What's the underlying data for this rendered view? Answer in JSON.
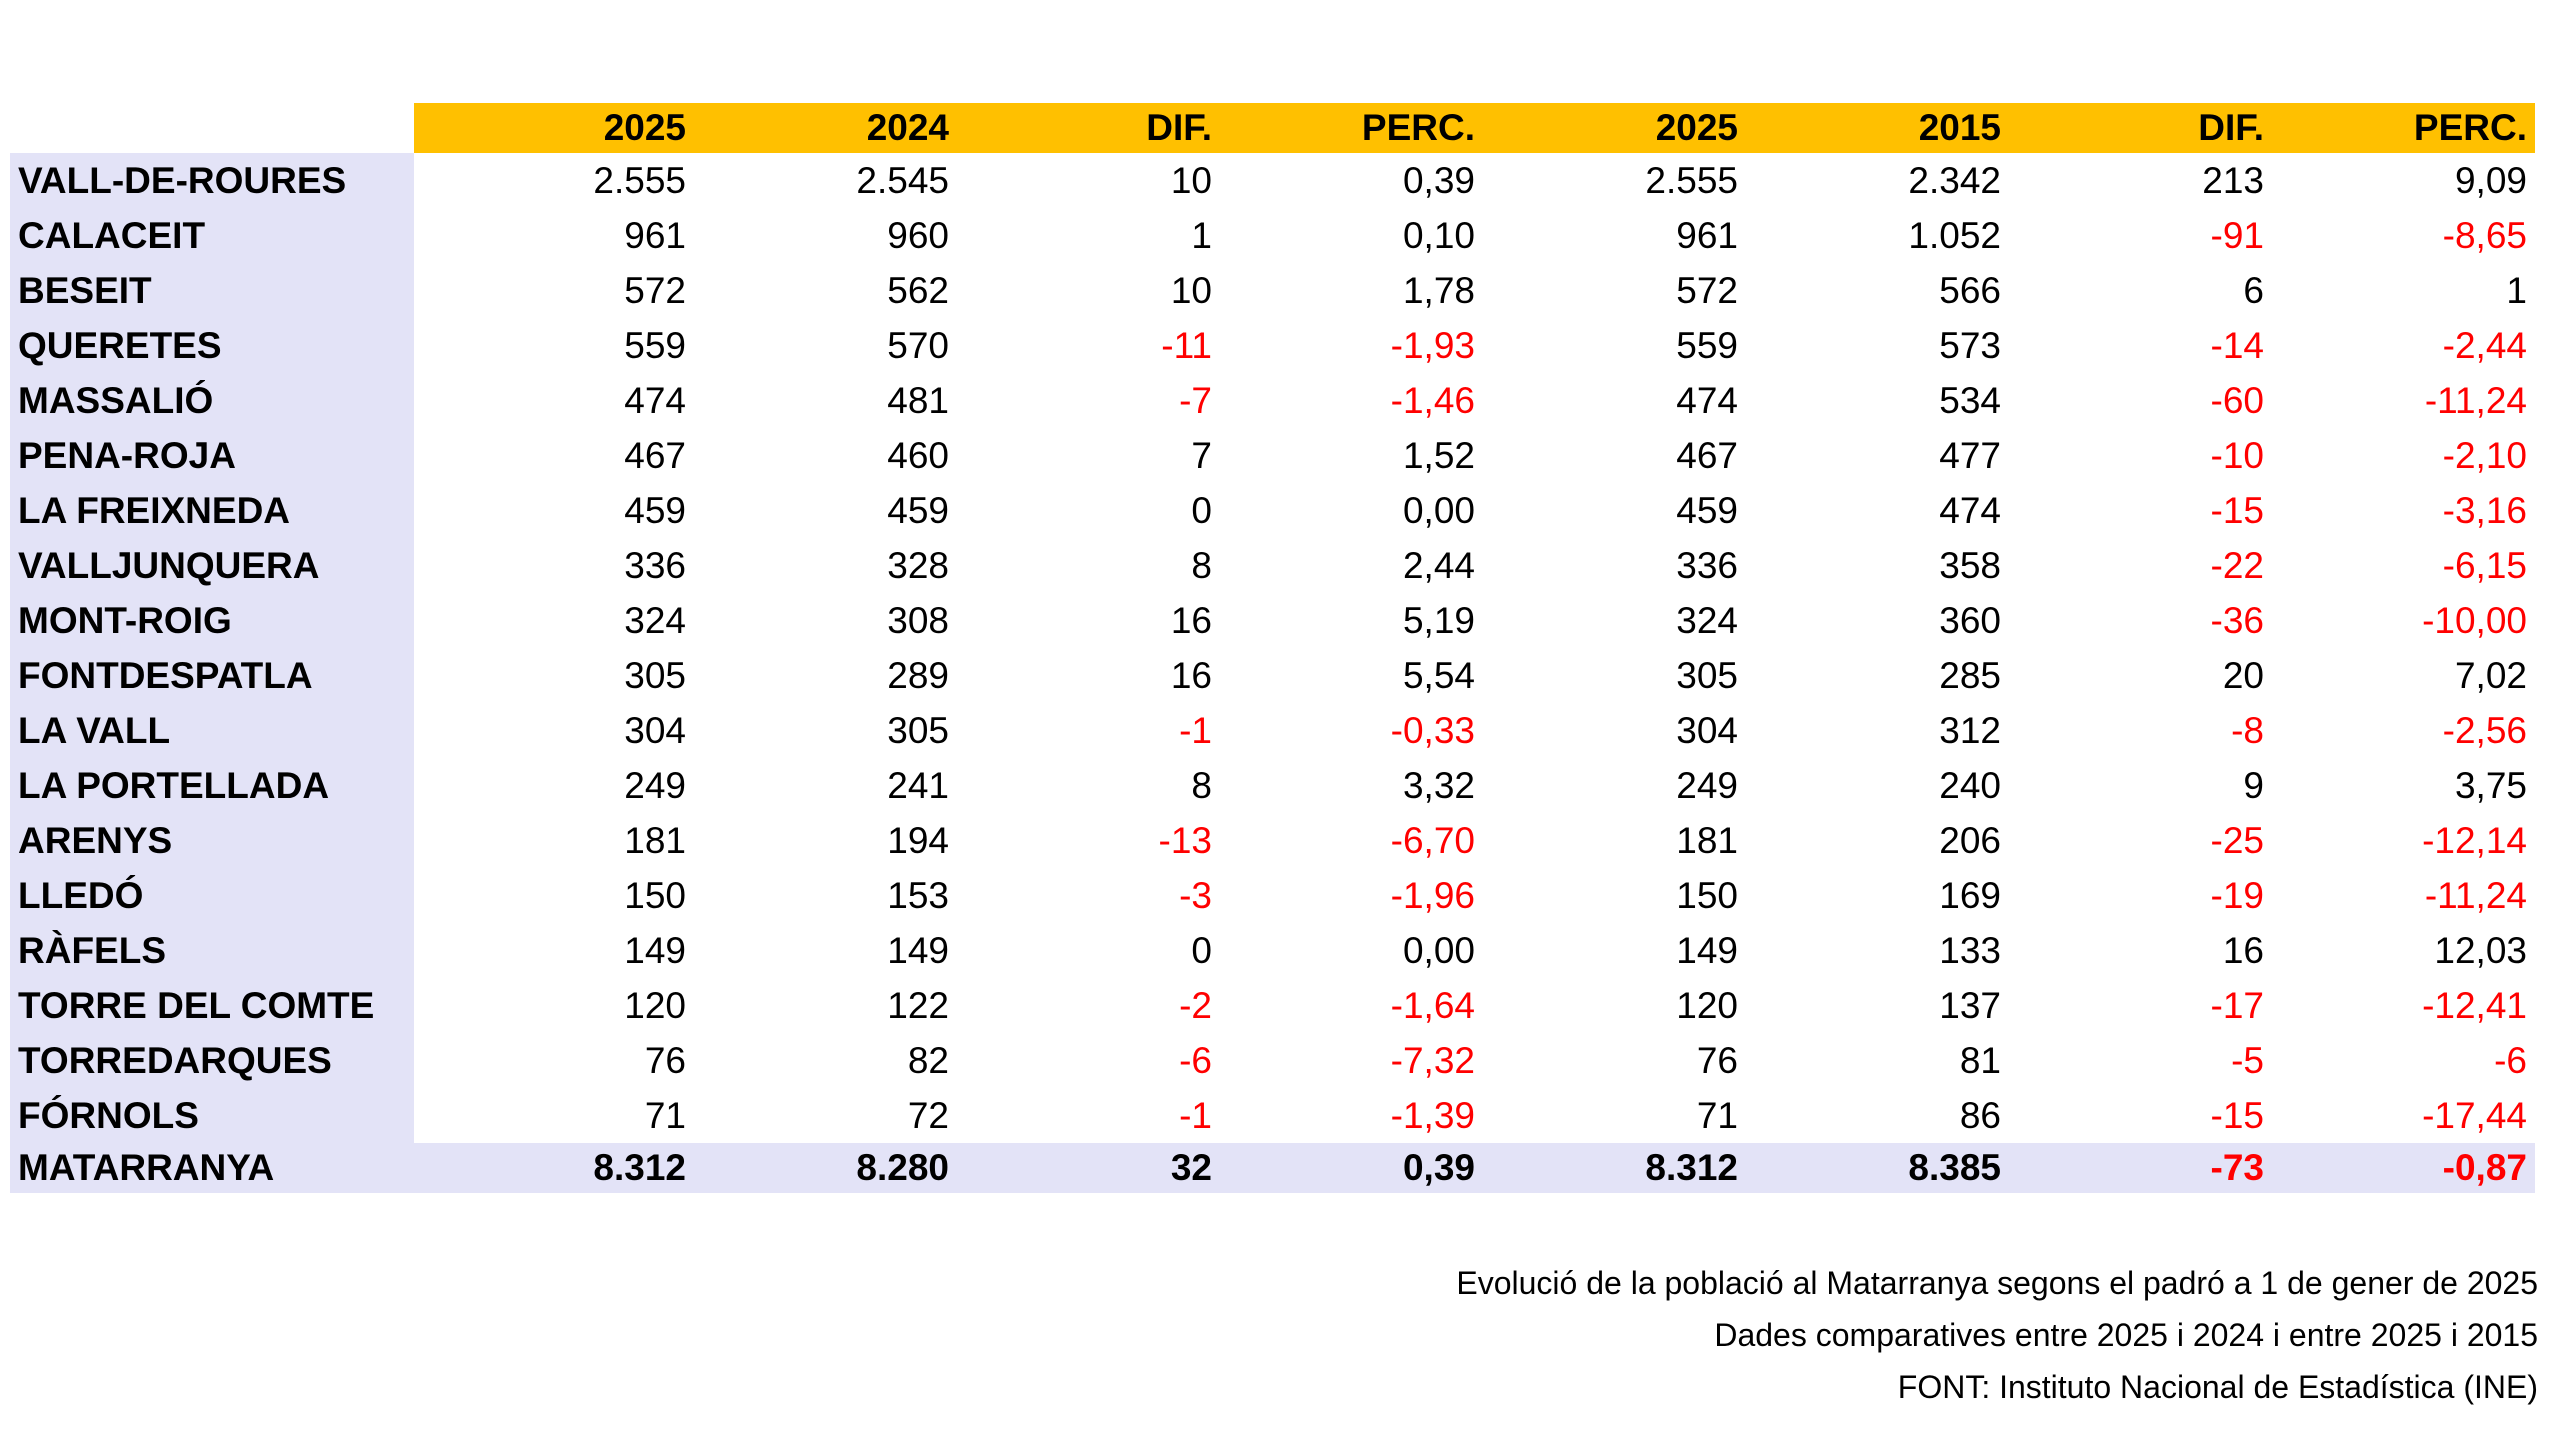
{
  "chart_data": {
    "type": "table",
    "title": "Evolució de la població al Matarranya segons el padró a 1 de gener de 2025",
    "columns": [
      "2025",
      "2024",
      "DIF.",
      "PERC.",
      "2025",
      "2015",
      "DIF.",
      "PERC."
    ],
    "rows": [
      {
        "name": "VALL-DE-ROURES",
        "values": [
          "2.555",
          "2.545",
          "10",
          "0,39",
          "2.555",
          "2.342",
          "213",
          "9,09"
        ]
      },
      {
        "name": "CALACEIT",
        "values": [
          "961",
          "960",
          "1",
          "0,10",
          "961",
          "1.052",
          "-91",
          "-8,65"
        ]
      },
      {
        "name": "BESEIT",
        "values": [
          "572",
          "562",
          "10",
          "1,78",
          "572",
          "566",
          "6",
          "1"
        ]
      },
      {
        "name": "QUERETES",
        "values": [
          "559",
          "570",
          "-11",
          "-1,93",
          "559",
          "573",
          "-14",
          "-2,44"
        ]
      },
      {
        "name": "MASSALIÓ",
        "values": [
          "474",
          "481",
          "-7",
          "-1,46",
          "474",
          "534",
          "-60",
          "-11,24"
        ]
      },
      {
        "name": "PENA-ROJA",
        "values": [
          "467",
          "460",
          "7",
          "1,52",
          "467",
          "477",
          "-10",
          "-2,10"
        ]
      },
      {
        "name": "LA FREIXNEDA",
        "values": [
          "459",
          "459",
          "0",
          "0,00",
          "459",
          "474",
          "-15",
          "-3,16"
        ]
      },
      {
        "name": "VALLJUNQUERA",
        "values": [
          "336",
          "328",
          "8",
          "2,44",
          "336",
          "358",
          "-22",
          "-6,15"
        ]
      },
      {
        "name": "MONT-ROIG",
        "values": [
          "324",
          "308",
          "16",
          "5,19",
          "324",
          "360",
          "-36",
          "-10,00"
        ]
      },
      {
        "name": "FONTDESPATLA",
        "values": [
          "305",
          "289",
          "16",
          "5,54",
          "305",
          "285",
          "20",
          "7,02"
        ]
      },
      {
        "name": "LA VALL",
        "values": [
          "304",
          "305",
          "-1",
          "-0,33",
          "304",
          "312",
          "-8",
          "-2,56"
        ]
      },
      {
        "name": "LA PORTELLADA",
        "values": [
          "249",
          "241",
          "8",
          "3,32",
          "249",
          "240",
          "9",
          "3,75"
        ]
      },
      {
        "name": "ARENYS",
        "values": [
          "181",
          "194",
          "-13",
          "-6,70",
          "181",
          "206",
          "-25",
          "-12,14"
        ]
      },
      {
        "name": "LLEDÓ",
        "values": [
          "150",
          "153",
          "-3",
          "-1,96",
          "150",
          "169",
          "-19",
          "-11,24"
        ]
      },
      {
        "name": "RÀFELS",
        "values": [
          "149",
          "149",
          "0",
          "0,00",
          "149",
          "133",
          "16",
          "12,03"
        ]
      },
      {
        "name": "TORRE DEL COMTE",
        "values": [
          "120",
          "122",
          "-2",
          "-1,64",
          "120",
          "137",
          "-17",
          "-12,41"
        ]
      },
      {
        "name": "TORREDARQUES",
        "values": [
          "76",
          "82",
          "-6",
          "-7,32",
          "76",
          "81",
          "-5",
          "-6"
        ]
      },
      {
        "name": "FÓRNOLS",
        "values": [
          "71",
          "72",
          "-1",
          "-1,39",
          "71",
          "86",
          "-15",
          "-17,44"
        ]
      }
    ],
    "total_row": {
      "name": "MATARRANYA",
      "values": [
        "8.312",
        "8.280",
        "32",
        "0,39",
        "8.312",
        "8.385",
        "-73",
        "-0,87"
      ]
    },
    "layout": {
      "header_bg": "#FFC000",
      "row_label_bg": "#E3E3F7",
      "negative_color": "#FF0000",
      "gridlines": false
    }
  },
  "footer": {
    "lines": [
      "Evolució de la població al Matarranya segons el padró a 1 de gener de 2025",
      "Dades comparatives entre 2025 i 2024 i entre 2025 i 2015",
      "FONT: Instituto Nacional de Estadística (INE)"
    ]
  },
  "colors": {
    "header_bg": "#FFC000",
    "row_label_bg": "#E3E3F7",
    "negative": "#FF0000",
    "text": "#000000",
    "background": "#FFFFFF"
  }
}
